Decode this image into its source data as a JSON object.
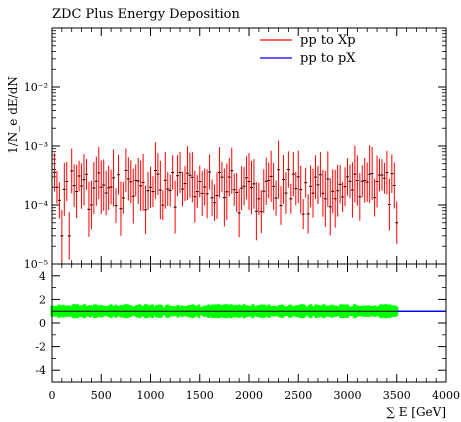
{
  "chart_data": [
    {
      "type": "scatter",
      "title": "ZDC Plus Energy Deposition",
      "xlabel": "∑ E [GeV]",
      "ylabel": "1/N_e dE/dN",
      "xlim": [
        0,
        4000
      ],
      "ylim": [
        1e-05,
        0.1
      ],
      "yscale": "log",
      "xticks": [
        "0",
        "500",
        "1000",
        "1500",
        "2000",
        "2500",
        "3000",
        "3500",
        "4000"
      ],
      "yticks": [
        "10⁻⁵",
        "10⁻⁴",
        "10⁻³",
        "10⁻²"
      ],
      "legend": {
        "position": "top-right",
        "entries": [
          "pp to Xp",
          "pp to pX"
        ]
      },
      "series": [
        {
          "name": "pp to Xp",
          "color": "#ff0000",
          "style": "error-bars",
          "x_range": [
            25,
            3500
          ],
          "bin_width": 25,
          "typical_value": 0.0002,
          "typical_range": [
            7e-05,
            0.0004
          ],
          "points": [
            [
              50,
              0.0002
            ],
            [
              75,
              0.00012
            ],
            [
              100,
              3e-05
            ],
            [
              150,
              0.00025
            ],
            [
              175,
              3e-05
            ],
            [
              500,
              0.0002
            ],
            [
              1000,
              0.0002
            ],
            [
              1500,
              0.00025
            ],
            [
              2000,
              0.00025
            ],
            [
              2400,
              0.0004
            ],
            [
              2500,
              0.0003
            ],
            [
              2550,
              7e-05
            ],
            [
              3000,
              0.0003
            ],
            [
              3300,
              0.00025
            ],
            [
              3500,
              5e-05
            ]
          ]
        },
        {
          "name": "pp to pX",
          "color": "#0000ff",
          "style": "line",
          "values": []
        }
      ]
    },
    {
      "type": "scatter",
      "ylabel": "",
      "xlim": [
        0,
        4000
      ],
      "ylim": [
        -5,
        5
      ],
      "yticks": [
        "-4",
        "-2",
        "0",
        "2",
        "4"
      ],
      "series": [
        {
          "name": "ratio",
          "color": "#00ff00",
          "style": "band",
          "x_range": [
            0,
            3500
          ],
          "value": 1,
          "band": [
            0.5,
            1.5
          ]
        },
        {
          "name": "reference",
          "color": "#0000ff",
          "style": "line",
          "x_range": [
            3500,
            4000
          ],
          "value": 1
        }
      ]
    }
  ]
}
